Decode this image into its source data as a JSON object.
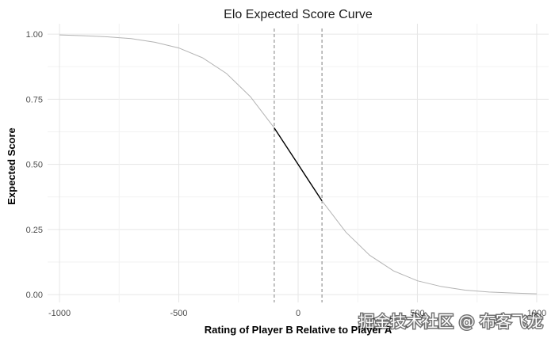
{
  "chart_data": {
    "type": "line",
    "title": "Elo Expected Score Curve",
    "xlabel": "Rating of Player B Relative to Player A",
    "ylabel": "Expected Score",
    "xlim": [
      -1050,
      1050
    ],
    "ylim": [
      -0.03,
      1.04
    ],
    "grid": true,
    "x_ticks": [
      -1000,
      -500,
      0,
      500,
      1000
    ],
    "x_tick_labels": [
      "-1000",
      "-500",
      "0",
      "500",
      "1000"
    ],
    "y_ticks": [
      0.0,
      0.25,
      0.5,
      0.75,
      1.0
    ],
    "y_tick_labels": [
      "0.00",
      "0.25",
      "0.50",
      "0.75",
      "1.00"
    ],
    "series": [
      {
        "x": [
          -1000,
          -900,
          -800,
          -700,
          -600,
          -500,
          -400,
          -300,
          -200,
          -100,
          0,
          100,
          200,
          300,
          400,
          500,
          600,
          700,
          800,
          900,
          1000
        ],
        "values": [
          0.997,
          0.994,
          0.99,
          0.983,
          0.969,
          0.947,
          0.909,
          0.849,
          0.76,
          0.64,
          0.5,
          0.36,
          0.24,
          0.151,
          0.091,
          0.053,
          0.031,
          0.017,
          0.01,
          0.006,
          0.003
        ],
        "color": "#b3b3b3"
      }
    ],
    "highlight": {
      "x_range": [
        -100,
        100
      ],
      "color": "#000000"
    },
    "reference_lines": [
      {
        "x": -100,
        "style": "dashed",
        "color": "#808080"
      },
      {
        "x": 100,
        "style": "dashed",
        "color": "#808080"
      }
    ]
  },
  "watermark": "掘金技术社区 @ 布客飞龙"
}
